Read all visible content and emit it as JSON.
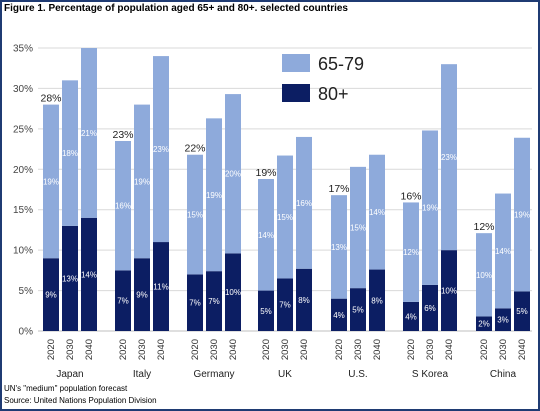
{
  "figure": {
    "title": "Figure 1. Percentage of population aged 65+ and 80+. selected countries",
    "note": "UN's \"medium\" population forecast",
    "source": "Source: United Nations Population Division"
  },
  "colors": {
    "light": "#8eaadb",
    "dark": "#0c1e63",
    "grid": "#d9d9d9"
  },
  "chart_data": {
    "type": "bar",
    "stacked": true,
    "title": "Figure 1. Percentage of population aged 65+ and 80+. selected countries",
    "ylim": [
      0,
      35
    ],
    "yticks": [
      "0%",
      "5%",
      "10%",
      "15%",
      "20%",
      "25%",
      "30%",
      "35%"
    ],
    "legend": [
      "65-79",
      "80+"
    ],
    "legend_position": "top-right",
    "grid": true,
    "years": [
      "2020",
      "2030",
      "2040"
    ],
    "groups": [
      {
        "country": "Japan",
        "total_2020": "28%",
        "s80": [
          9,
          13,
          14
        ],
        "s6579": [
          19,
          18,
          21
        ],
        "l80": [
          "9%",
          "13%",
          "14%"
        ],
        "l6579": [
          "19%",
          "18%",
          "21%"
        ]
      },
      {
        "country": "Italy",
        "total_2020": "23%",
        "s80": [
          7.5,
          9,
          11
        ],
        "s6579": [
          16,
          19,
          23
        ],
        "l80": [
          "7%",
          "9%",
          "11%"
        ],
        "l6579": [
          "16%",
          "19%",
          "23%"
        ]
      },
      {
        "country": "Germany",
        "total_2020": "22%",
        "s80": [
          7,
          7.4,
          9.6
        ],
        "s6579": [
          14.8,
          18.9,
          19.7
        ],
        "l80": [
          "7%",
          "7%",
          "10%"
        ],
        "l6579": [
          "15%",
          "19%",
          "20%"
        ]
      },
      {
        "country": "UK",
        "total_2020": "19%",
        "s80": [
          5,
          6.5,
          7.7
        ],
        "s6579": [
          13.8,
          15.2,
          16.3
        ],
        "l80": [
          "5%",
          "7%",
          "8%"
        ],
        "l6579": [
          "14%",
          "15%",
          "16%"
        ]
      },
      {
        "country": "U.S.",
        "total_2020": "17%",
        "s80": [
          4,
          5.3,
          7.6
        ],
        "s6579": [
          12.8,
          15,
          14.2
        ],
        "l80": [
          "4%",
          "5%",
          "8%"
        ],
        "l6579": [
          "13%",
          "15%",
          "14%"
        ]
      },
      {
        "country": "S Korea",
        "total_2020": "16%",
        "s80": [
          3.6,
          5.7,
          10
        ],
        "s6579": [
          12.3,
          19.1,
          23
        ],
        "l80": [
          "4%",
          "6%",
          "10%"
        ],
        "l6579": [
          "12%",
          "19%",
          "23%"
        ]
      },
      {
        "country": "China",
        "total_2020": "12%",
        "s80": [
          1.8,
          2.8,
          4.9
        ],
        "s6579": [
          10.3,
          14.2,
          19
        ],
        "l80": [
          "2%",
          "3%",
          "5%"
        ],
        "l6579": [
          "10%",
          "14%",
          "19%"
        ]
      }
    ]
  }
}
